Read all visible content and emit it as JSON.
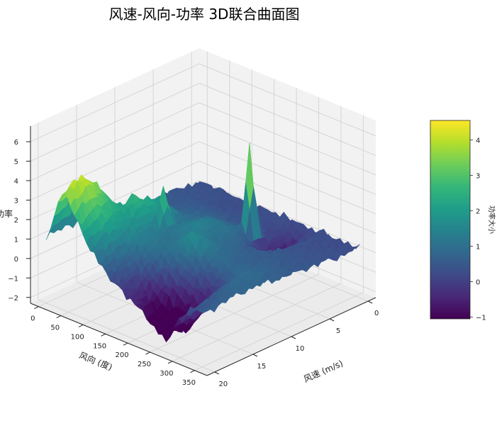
{
  "chart_data": {
    "type": "surface3d",
    "title": "风速-风向-功率 3D联合曲面图",
    "xlabel": "风速 (m/s)",
    "ylabel": "风向 (度)",
    "zlabel": "功率",
    "colorbar_label": "功率大小",
    "colormap": "viridis",
    "xlim": [
      0,
      20
    ],
    "ylim": [
      0,
      360
    ],
    "zlim": [
      -2.3,
      6.8
    ],
    "clim": [
      -1.05,
      4.55
    ],
    "x_ticks": [
      "0",
      "5",
      "10",
      "15",
      "20"
    ],
    "y_ticks": [
      "0",
      "50",
      "100",
      "150",
      "200",
      "250",
      "300",
      "350"
    ],
    "z_ticks": [
      "−2",
      "−1",
      "0",
      "1",
      "2",
      "3",
      "4",
      "5",
      "6"
    ],
    "colorbar_ticks": [
      "−1",
      "0",
      "1",
      "2",
      "3",
      "4"
    ],
    "grid": true,
    "speed_grid": [
      0,
      2.5,
      5,
      7.5,
      10,
      12.5,
      15,
      17.5,
      20
    ],
    "direction_grid": [
      0,
      40,
      80,
      120,
      160,
      200,
      240,
      280,
      320,
      360
    ],
    "power": [
      [
        0.3,
        0.3,
        0.3,
        0.2,
        0.3,
        0.3,
        0.2,
        0.3,
        0.2,
        0.3
      ],
      [
        0.4,
        0.4,
        0.3,
        0.3,
        0.3,
        0.2,
        -0.2,
        0.3,
        0.3,
        0.3
      ],
      [
        0.5,
        0.5,
        0.6,
        0.6,
        0.5,
        0.6,
        -0.8,
        0.4,
        0.4,
        0.4
      ],
      [
        0.5,
        0.6,
        0.8,
        0.9,
        1.2,
        1.0,
        0.5,
        0.6,
        0.5,
        0.5
      ],
      [
        0.6,
        0.8,
        2.0,
        1.0,
        1.5,
        1.0,
        0.8,
        0.6,
        0.7,
        0.6
      ],
      [
        0.8,
        1.0,
        2.5,
        1.2,
        1.0,
        1.8,
        1.0,
        0.8,
        0.9,
        0.7
      ],
      [
        1.0,
        3.0,
        2.0,
        1.5,
        1.0,
        0.5,
        0.0,
        -0.5,
        0.8,
        0.8
      ],
      [
        1.2,
        4.4,
        2.6,
        1.0,
        0.2,
        -1.0,
        -1.8,
        -1.5,
        0.5,
        0.7
      ],
      [
        1.0,
        4.0,
        2.0,
        0.8,
        0.0,
        -0.5,
        -1.2,
        -1.0,
        0.3,
        0.6
      ]
    ],
    "spikes": [
      {
        "speed": 5,
        "direction": 200,
        "power": 5.3
      },
      {
        "speed": 11,
        "direction": 110,
        "power": 3.2
      },
      {
        "speed": 13,
        "direction": 70,
        "power": 2.6
      },
      {
        "speed": 3,
        "direction": 250,
        "power": -1.6
      },
      {
        "speed": 19,
        "direction": 250,
        "power": -2.2
      }
    ]
  }
}
